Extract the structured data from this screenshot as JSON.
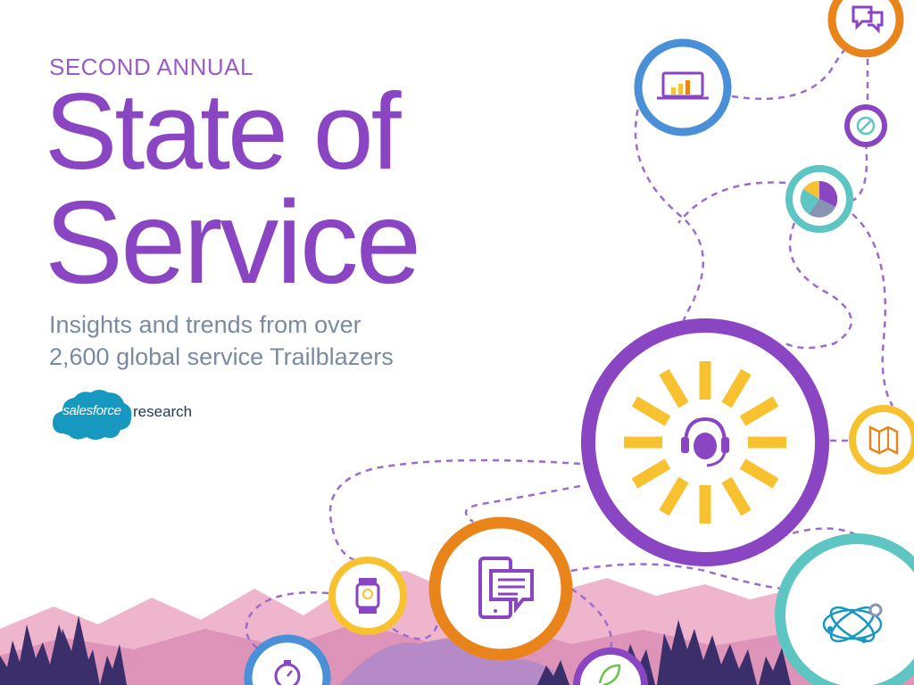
{
  "cover": {
    "eyebrow": "SECOND ANNUAL",
    "title_line1": "State of",
    "title_line2": "Service",
    "subtitle_line1": "Insights and trends from over",
    "subtitle_line2": "2,600 global service Trailblazers"
  },
  "brand": {
    "logo_text": "salesforce",
    "suffix": "research"
  },
  "icons": [
    "laptop-chart-icon",
    "chat-bubbles-icon",
    "compass-icon",
    "pie-chart-icon",
    "headset-icon",
    "map-icon",
    "smartwatch-icon",
    "tablet-chat-icon",
    "network-icon",
    "stopwatch-icon",
    "leaf-icon"
  ],
  "colors": {
    "purple": "#8a46c2",
    "orange": "#e8841a",
    "teal": "#5ec6c2",
    "blue": "#4a90d9",
    "yellow": "#f7c12f",
    "brand_blue": "#1798c1",
    "mountain_pink": "#e9a9c5",
    "trees": "#3b2f6b"
  }
}
